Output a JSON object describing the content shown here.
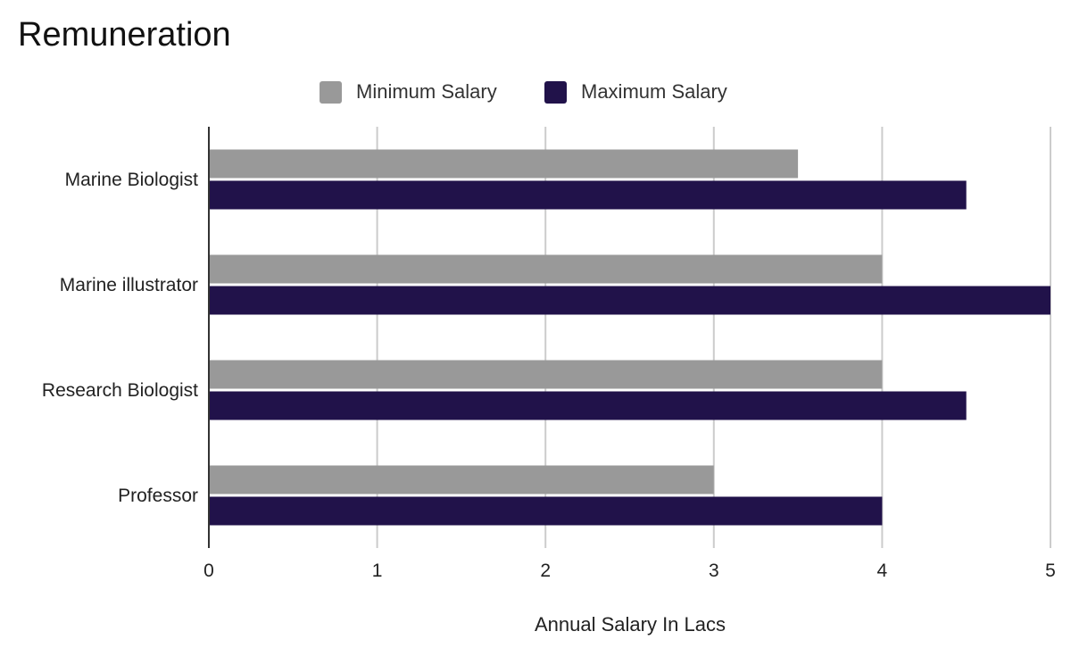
{
  "chart_data": {
    "type": "bar",
    "orientation": "horizontal",
    "title": "Remuneration",
    "xlabel": "Annual Salary In Lacs",
    "ylabel": "",
    "categories": [
      "Marine Biologist",
      "Marine illustrator",
      "Research Biologist",
      "Professor"
    ],
    "series": [
      {
        "name": "Minimum Salary",
        "color": "#999999",
        "values": [
          3.5,
          4,
          4,
          3
        ]
      },
      {
        "name": "Maximum Salary",
        "color": "#21124a",
        "values": [
          4.5,
          5,
          4.5,
          4
        ]
      }
    ],
    "xlim": [
      0,
      5
    ],
    "x_ticks": [
      "0",
      "1",
      "2",
      "3",
      "4",
      "5"
    ],
    "grid": true,
    "legend_position": "top"
  }
}
